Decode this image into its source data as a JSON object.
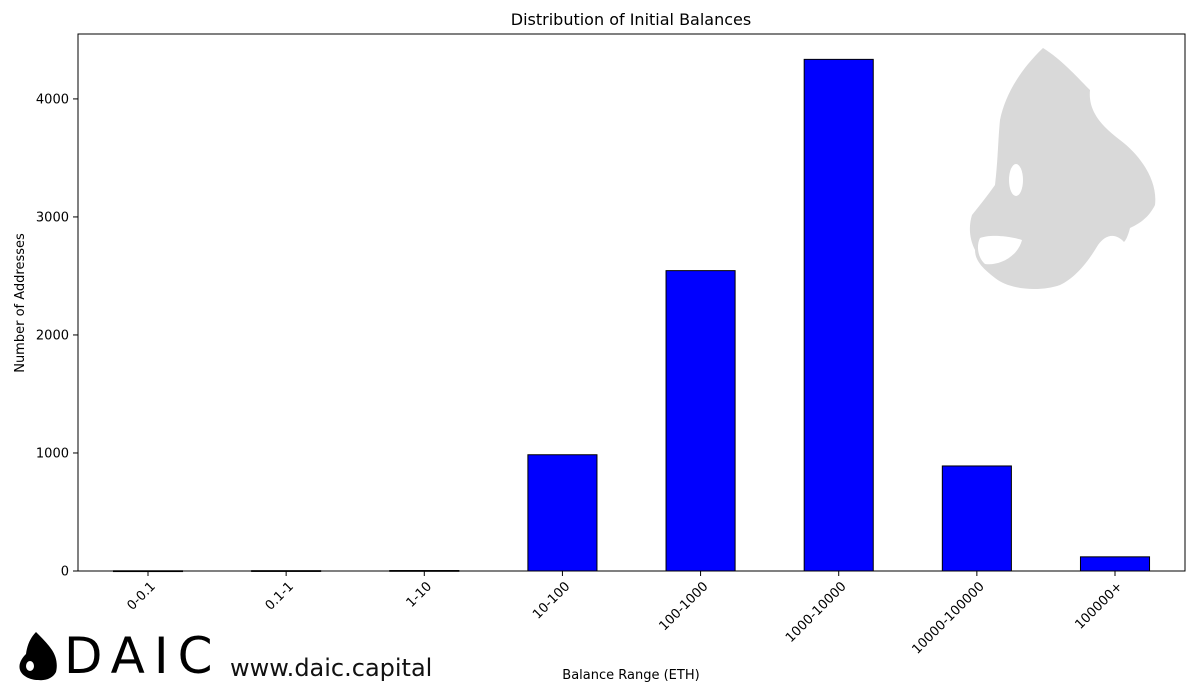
{
  "chart_data": {
    "type": "bar",
    "title": "Distribution of Initial Balances",
    "xlabel": "Balance Range (ETH)",
    "ylabel": "Number of Addresses",
    "categories": [
      "0-0.1",
      "0.1-1",
      "1-10",
      "10-100",
      "100-1000",
      "1000-10000",
      "10000-100000",
      "100000+"
    ],
    "values": [
      2,
      3,
      4,
      985,
      2545,
      4335,
      890,
      120
    ],
    "ylim": [
      0,
      4550
    ],
    "yticks": [
      0,
      1000,
      2000,
      3000,
      4000
    ],
    "grid": false,
    "bar_color": "#0000ff",
    "edge_color": "#000000"
  },
  "branding": {
    "logo_text": "DAIC",
    "url": "www.daic.capital",
    "watermark_icon": "gorilla-head-icon",
    "watermark_color": "#d9d9d9"
  }
}
